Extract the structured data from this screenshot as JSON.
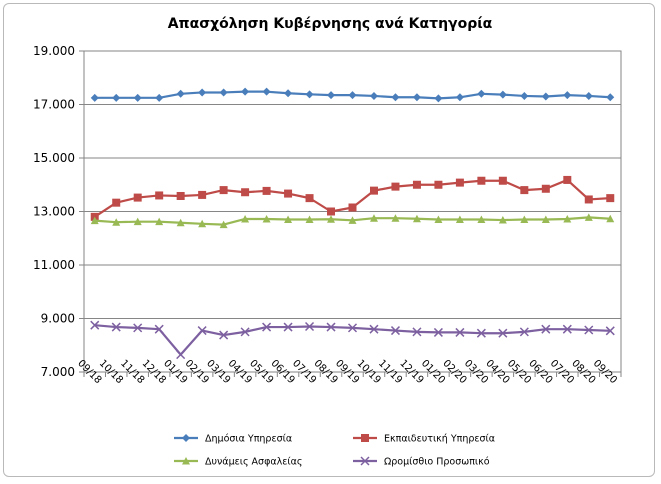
{
  "chart_data": {
    "type": "line",
    "title": "Απασχόληση Κυβέρνησης ανά Κατηγορία",
    "xlabel": "",
    "ylabel": "",
    "ylim": [
      7000,
      19000
    ],
    "y_ticks": [
      "7.000",
      "9.000",
      "11.000",
      "13.000",
      "15.000",
      "17.000",
      "19.000"
    ],
    "y_tick_values": [
      7000,
      9000,
      11000,
      13000,
      15000,
      17000,
      19000
    ],
    "categories": [
      "09/18",
      "10/18",
      "11/18",
      "12/18",
      "01/19",
      "02/19",
      "03/19",
      "04/19",
      "05/19",
      "06/19",
      "07/19",
      "08/19",
      "09/19",
      "10/19",
      "11/19",
      "12/19",
      "01/20",
      "02/20",
      "03/20",
      "04/20",
      "05/20",
      "06/20",
      "07/20",
      "08/20",
      "09/20"
    ],
    "grid": true,
    "legend_position": "bottom",
    "series": [
      {
        "name": "Δημόσια Υπηρεσία",
        "color": "#4a7ebb",
        "marker": "diamond",
        "values": [
          17250,
          17250,
          17250,
          17250,
          17400,
          17450,
          17450,
          17480,
          17480,
          17420,
          17380,
          17350,
          17350,
          17320,
          17270,
          17270,
          17230,
          17270,
          17400,
          17370,
          17320,
          17300,
          17350,
          17320,
          17270
        ]
      },
      {
        "name": "Εκπαιδευτική Υπηρεσία",
        "color": "#be4b48",
        "marker": "square",
        "values": [
          12800,
          13330,
          13520,
          13600,
          13580,
          13620,
          13800,
          13720,
          13770,
          13670,
          13500,
          13000,
          13150,
          13780,
          13930,
          14000,
          14000,
          14080,
          14150,
          14150,
          13800,
          13850,
          14180,
          13450,
          13500
        ]
      },
      {
        "name": "Δυνάμεις Ασφαλείας",
        "color": "#98b954",
        "marker": "triangle",
        "values": [
          12660,
          12600,
          12620,
          12620,
          12580,
          12540,
          12510,
          12720,
          12720,
          12700,
          12700,
          12710,
          12670,
          12750,
          12750,
          12730,
          12700,
          12700,
          12700,
          12680,
          12700,
          12700,
          12720,
          12780,
          12730
        ]
      },
      {
        "name": "Ωρομίσθιο Προσωπικό",
        "color": "#7d60a0",
        "marker": "x",
        "values": [
          8750,
          8680,
          8650,
          8600,
          7650,
          8550,
          8380,
          8500,
          8680,
          8680,
          8700,
          8680,
          8650,
          8600,
          8550,
          8500,
          8480,
          8480,
          8450,
          8450,
          8500,
          8600,
          8600,
          8570,
          8540
        ]
      }
    ]
  }
}
